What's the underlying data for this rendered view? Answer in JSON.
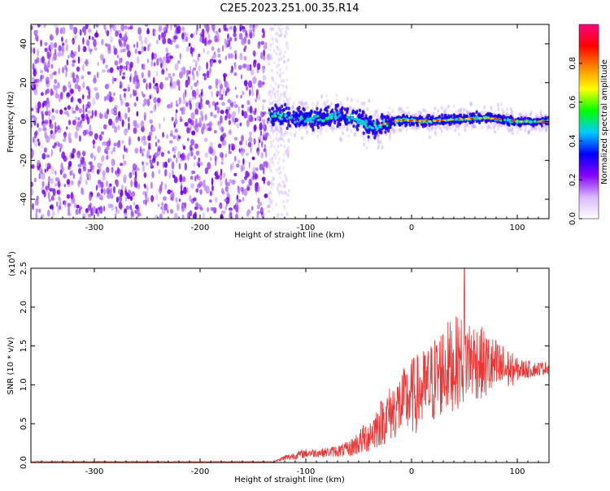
{
  "title": "C2E5.2023.251.00.35.R14",
  "chart_data": [
    {
      "type": "heatmap",
      "name": "spectrogram",
      "xlabel": "Height of straight line (km)",
      "ylabel": "Frequency (Hz)",
      "xlim": [
        -360,
        130
      ],
      "ylim": [
        -50,
        50
      ],
      "xticks": [
        -300,
        -200,
        -100,
        0,
        100
      ],
      "yticks": [
        -40,
        -20,
        0,
        20,
        40
      ],
      "x_tick_labels": [
        "-300",
        "-200",
        "-100",
        "0",
        "100"
      ],
      "y_tick_labels": [
        "-40",
        "-20",
        "0",
        "20",
        "40"
      ],
      "noise_region_end_km": -135,
      "signal_frequency_track": {
        "x": [
          -135,
          -110,
          -90,
          -70,
          -50,
          -35,
          -25,
          -10,
          10,
          40,
          70,
          100,
          130
        ],
        "y": [
          3,
          2,
          1,
          3,
          1,
          -3,
          -1,
          1,
          0,
          1,
          2,
          0,
          0
        ]
      },
      "colorbar": {
        "label": "Normalized spectral amplitude",
        "range": [
          0.0,
          1.0
        ],
        "ticks": [
          0.0,
          0.2,
          0.4,
          0.6,
          0.8
        ],
        "tick_labels": [
          "0.0",
          "0.2",
          "0.4",
          "0.6",
          "0.8"
        ],
        "colors": [
          "#ffffff",
          "#d8b8ff",
          "#8800ff",
          "#0000ff",
          "#00ccff",
          "#00ff00",
          "#ffff00",
          "#ff8800",
          "#ff0000",
          "#ff0080"
        ]
      }
    },
    {
      "type": "line",
      "name": "snr",
      "xlabel": "Height of straight line (km)",
      "ylabel": "SNR (10 * v/v)",
      "y_scale_label": "(x10",
      "y_scale_exp": "4",
      "y_scale_close": ")",
      "xlim": [
        -360,
        130
      ],
      "ylim": [
        0,
        2.5
      ],
      "xticks": [
        -300,
        -200,
        -100,
        0,
        100
      ],
      "yticks": [
        0.0,
        0.5,
        1.0,
        1.5,
        2.0,
        2.5
      ],
      "x_tick_labels": [
        "-300",
        "-200",
        "-100",
        "0",
        "100"
      ],
      "y_tick_labels": [
        "0.0",
        "0.5",
        "1.0",
        "1.5",
        "2.0",
        "2.5"
      ],
      "series": [
        {
          "name": "SNR",
          "color": "#ee3333",
          "envelope_x": [
            -360,
            -130,
            -120,
            -100,
            -80,
            -60,
            -45,
            -30,
            -15,
            0,
            15,
            30,
            45,
            55,
            70,
            85,
            100,
            115,
            130
          ],
          "envelope_mean": [
            0.01,
            0.01,
            0.06,
            0.12,
            0.13,
            0.17,
            0.3,
            0.5,
            0.7,
            0.85,
            0.95,
            1.2,
            1.3,
            1.35,
            1.25,
            1.2,
            1.2,
            1.2,
            1.22
          ],
          "envelope_spread": [
            0.005,
            0.005,
            0.04,
            0.06,
            0.06,
            0.1,
            0.2,
            0.3,
            0.4,
            0.5,
            0.55,
            0.6,
            0.6,
            0.55,
            0.45,
            0.35,
            0.15,
            0.1,
            0.08
          ],
          "peak": {
            "x": 50,
            "y": 2.5
          }
        }
      ]
    }
  ]
}
